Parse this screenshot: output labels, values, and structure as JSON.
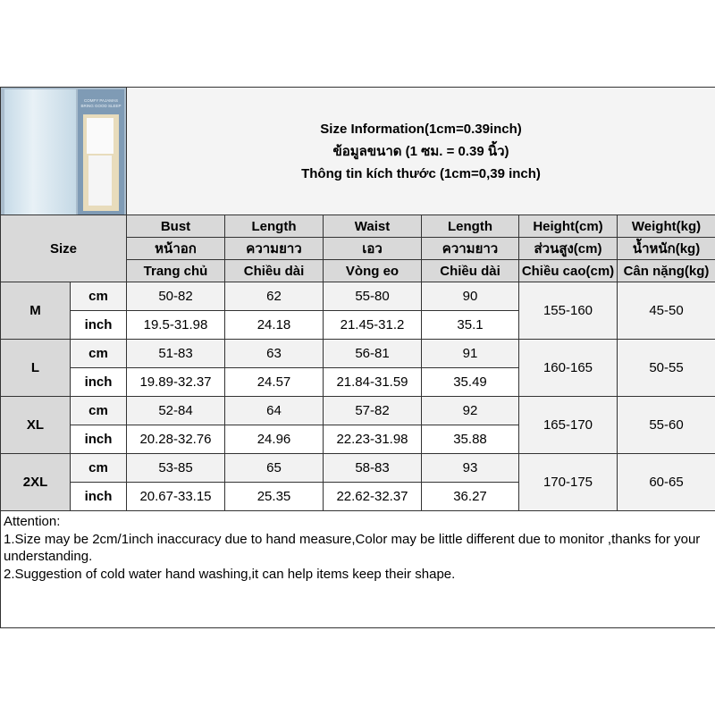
{
  "title": {
    "en": "Size Information(1cm=0.39inch)",
    "th": "ข้อมูลขนาด (1 ซม. = 0.39 นิ้ว)",
    "vi": "Thông tin kích thước (1cm=0,39 inch)"
  },
  "product_image": {
    "caption": "COMFY PAJAMAS BRING GOOD SLEEP"
  },
  "size_label": "Size",
  "columns": [
    {
      "en": "Bust",
      "th": "หน้าอก",
      "vi": "Trang chủ"
    },
    {
      "en": "Length",
      "th": "ความยาว",
      "vi": "Chiều dài"
    },
    {
      "en": "Waist",
      "th": "เอว",
      "vi": "Vòng eo"
    },
    {
      "en": "Length",
      "th": "ความยาว",
      "vi": "Chiều dài"
    },
    {
      "en": "Height(cm)",
      "th": "ส่วนสูง(cm)",
      "vi": "Chiều cao(cm)"
    },
    {
      "en": "Weight(kg)",
      "th": "น้ำหนัก(kg)",
      "vi": "Cân nặng(kg)"
    }
  ],
  "unit_labels": {
    "cm": "cm",
    "inch": "inch"
  },
  "sizes": [
    {
      "size": "M",
      "cm": [
        "50-82",
        "62",
        "55-80",
        "90"
      ],
      "inch": [
        "19.5-31.98",
        "24.18",
        "21.45-31.2",
        "35.1"
      ],
      "height": "155-160",
      "weight": "45-50"
    },
    {
      "size": "L",
      "cm": [
        "51-83",
        "63",
        "56-81",
        "91"
      ],
      "inch": [
        "19.89-32.37",
        "24.57",
        "21.84-31.59",
        "35.49"
      ],
      "height": "160-165",
      "weight": "50-55"
    },
    {
      "size": "XL",
      "cm": [
        "52-84",
        "64",
        "57-82",
        "92"
      ],
      "inch": [
        "20.28-32.76",
        "24.96",
        "22.23-31.98",
        "35.88"
      ],
      "height": "165-170",
      "weight": "55-60"
    },
    {
      "size": "2XL",
      "cm": [
        "53-85",
        "65",
        "58-83",
        "93"
      ],
      "inch": [
        "20.67-33.15",
        "25.35",
        "22.62-32.37",
        "36.27"
      ],
      "height": "170-175",
      "weight": "60-65"
    }
  ],
  "attention": {
    "heading": "Attention:",
    "lines": [
      "1.Size may be 2cm/1inch inaccuracy due to hand measure,Color may be little different due to monitor ,thanks for your understanding.",
      "2.Suggestion of cold water hand washing,it can help items keep their shape."
    ]
  }
}
